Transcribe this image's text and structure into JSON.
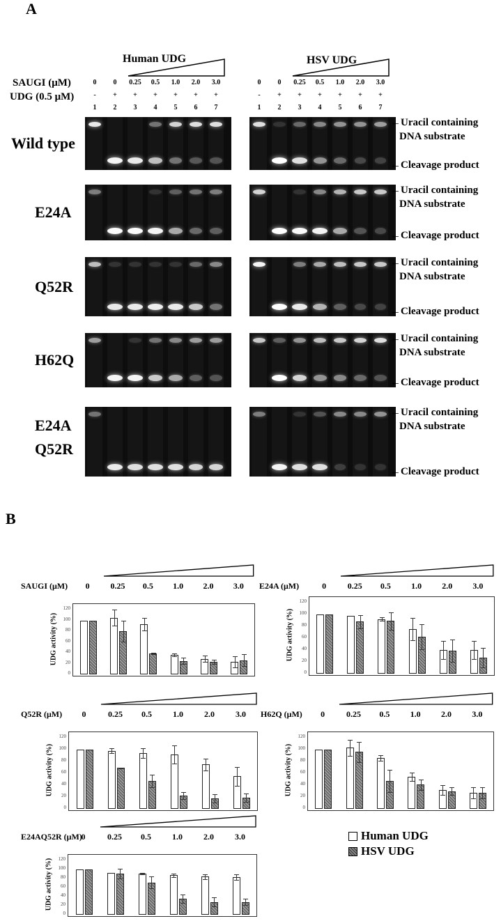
{
  "panel_a": {
    "letter": "A",
    "row_labels": {
      "saugi": "SAUGI (μM)",
      "udg": "UDG (0.5 μM)"
    },
    "sections": [
      {
        "title": "Human  UDG",
        "saugi": [
          "0",
          "0",
          "0.25",
          "0.5",
          "1.0",
          "2.0",
          "3.0"
        ],
        "udg": [
          "-",
          "+",
          "+",
          "+",
          "+",
          "+",
          "+"
        ],
        "lanes": [
          "1",
          "2",
          "3",
          "4",
          "5",
          "6",
          "7"
        ]
      },
      {
        "title": "HSV UDG",
        "saugi": [
          "0",
          "0",
          "0.25",
          "0.5",
          "1.0",
          "2.0",
          "3.0"
        ],
        "udg": [
          "-",
          "+",
          "+",
          "+",
          "+",
          "+",
          "+"
        ],
        "lanes": [
          "1",
          "2",
          "3",
          "4",
          "5",
          "6",
          "7"
        ]
      }
    ],
    "band_labels": {
      "substrate_line1": "Uracil containing",
      "substrate_line2": "DNA substrate",
      "product": "Cleavage product"
    },
    "gels": [
      {
        "mutant": "Wild type",
        "human": {
          "substrate": [
            0.9,
            0.02,
            0.03,
            0.35,
            0.8,
            0.85,
            0.85
          ],
          "product": [
            0,
            0.95,
            0.9,
            0.7,
            0.35,
            0.22,
            0.2
          ]
        },
        "hsv": {
          "substrate": [
            0.85,
            0.05,
            0.3,
            0.45,
            0.5,
            0.5,
            0.55
          ],
          "product": [
            0,
            1.0,
            0.85,
            0.5,
            0.3,
            0.15,
            0.12
          ]
        }
      },
      {
        "mutant": "E24A",
        "human": {
          "substrate": [
            0.4,
            0.02,
            0.02,
            0.05,
            0.25,
            0.35,
            0.4
          ],
          "product": [
            0,
            0.98,
            0.98,
            0.95,
            0.6,
            0.3,
            0.25
          ]
        },
        "hsv": {
          "substrate": [
            0.8,
            0.02,
            0.05,
            0.45,
            0.65,
            0.75,
            0.75
          ],
          "product": [
            0,
            1.0,
            0.98,
            0.95,
            0.6,
            0.2,
            0.15
          ]
        }
      },
      {
        "mutant": "Q52R",
        "human": {
          "substrate": [
            0.7,
            0.05,
            0.05,
            0.05,
            0.05,
            0.3,
            0.45
          ],
          "product": [
            0,
            0.9,
            0.9,
            0.92,
            0.9,
            0.75,
            0.35
          ]
        },
        "hsv": {
          "substrate": [
            0.95,
            0.02,
            0.4,
            0.6,
            0.7,
            0.75,
            0.75
          ],
          "product": [
            0,
            1.0,
            0.9,
            0.65,
            0.25,
            0.15,
            0.12
          ]
        }
      },
      {
        "mutant": "H62Q",
        "human": {
          "substrate": [
            0.55,
            0.02,
            0.05,
            0.35,
            0.45,
            0.55,
            0.55
          ],
          "product": [
            0,
            0.95,
            0.95,
            0.75,
            0.6,
            0.25,
            0.2
          ]
        },
        "hsv": {
          "substrate": [
            0.75,
            0.25,
            0.5,
            0.7,
            0.75,
            0.8,
            0.85
          ],
          "product": [
            0,
            1.0,
            0.8,
            0.5,
            0.45,
            0.3,
            0.2
          ]
        }
      },
      {
        "mutant": "E24A\nQ52R",
        "human": {
          "substrate": [
            0.35,
            0.02,
            0.02,
            0.02,
            0.02,
            0.02,
            0.02
          ],
          "product": [
            0,
            0.9,
            0.85,
            0.85,
            0.85,
            0.8,
            0.8
          ]
        },
        "hsv": {
          "substrate": [
            0.4,
            0.02,
            0.05,
            0.2,
            0.45,
            0.45,
            0.5
          ],
          "product": [
            0,
            0.95,
            0.85,
            0.85,
            0.1,
            0.05,
            0.05
          ]
        }
      }
    ]
  },
  "panel_b": {
    "letter": "B",
    "legend": [
      {
        "label": "Human  UDG",
        "key": "human"
      },
      {
        "label": "HSV UDG",
        "key": "hsv"
      }
    ],
    "conc_labels": [
      "0",
      "0.25",
      "0.5",
      "1.0",
      "2.0",
      "3.0"
    ],
    "y_ticks": [
      "120",
      "100",
      "80",
      "60",
      "40",
      "20",
      "0"
    ],
    "y_label": "UDG activity (%)"
  },
  "chart_data": [
    {
      "type": "bar",
      "title": "SAUGI (μM)",
      "categories": [
        "0",
        "0.25",
        "0.5",
        "1.0",
        "2.0",
        "3.0"
      ],
      "xlabel": "",
      "ylabel": "UDG activity (%)",
      "ylim": [
        0,
        120
      ],
      "grid": false,
      "series": [
        {
          "name": "Human UDG",
          "values": [
            100,
            105,
            93,
            36,
            29,
            23
          ],
          "errors": [
            0,
            15,
            12,
            3,
            6,
            10
          ]
        },
        {
          "name": "HSV UDG",
          "values": [
            100,
            80,
            39,
            25,
            23,
            26
          ],
          "errors": [
            0,
            19,
            1,
            6,
            4,
            11
          ]
        }
      ]
    },
    {
      "type": "bar",
      "title": "E24A (μM)",
      "categories": [
        "0",
        "0.25",
        "0.5",
        "1.0",
        "2.0",
        "3.0"
      ],
      "xlabel": "",
      "ylabel": "UDG activity (%)",
      "ylim": [
        0,
        120
      ],
      "grid": false,
      "series": [
        {
          "name": "Human UDG",
          "values": [
            100,
            98,
            92,
            75,
            40,
            40
          ],
          "errors": [
            0,
            0,
            3,
            19,
            15,
            15
          ]
        },
        {
          "name": "HSV UDG",
          "values": [
            100,
            88,
            89,
            62,
            39,
            27
          ],
          "errors": [
            0,
            11,
            15,
            21,
            19,
            16
          ]
        }
      ]
    },
    {
      "type": "bar",
      "title": "Q52R (μM)",
      "categories": [
        "0",
        "0.25",
        "0.5",
        "1.0",
        "2.0",
        "3.0"
      ],
      "xlabel": "",
      "ylabel": "UDG activity (%)",
      "ylim": [
        0,
        120
      ],
      "grid": false,
      "series": [
        {
          "name": "Human UDG",
          "values": [
            100,
            98,
            94,
            92,
            75,
            55
          ],
          "errors": [
            0,
            4,
            8,
            15,
            10,
            16
          ]
        },
        {
          "name": "HSV UDG",
          "values": [
            100,
            69,
            47,
            22,
            18,
            19
          ],
          "errors": [
            0,
            1,
            11,
            6,
            7,
            7
          ]
        }
      ]
    },
    {
      "type": "bar",
      "title": "H62Q (μM)",
      "categories": [
        "0",
        "0.25",
        "0.5",
        "1.0",
        "2.0",
        "3.0"
      ],
      "xlabel": "",
      "ylabel": "UDG activity (%)",
      "ylim": [
        0,
        120
      ],
      "grid": false,
      "series": [
        {
          "name": "Human UDG",
          "values": [
            100,
            103,
            86,
            54,
            32,
            27
          ],
          "errors": [
            0,
            14,
            5,
            7,
            8,
            9
          ]
        },
        {
          "name": "HSV UDG",
          "values": [
            100,
            96,
            47,
            41,
            30,
            27
          ],
          "errors": [
            0,
            17,
            19,
            9,
            7,
            9
          ]
        }
      ]
    },
    {
      "type": "bar",
      "title": "E24AQ52R (μM)",
      "categories": [
        "0",
        "0.25",
        "0.5",
        "1.0",
        "2.0",
        "3.0"
      ],
      "xlabel": "",
      "ylabel": "UDG activity (%)",
      "ylim": [
        0,
        120
      ],
      "grid": false,
      "series": [
        {
          "name": "Human UDG",
          "values": [
            100,
            93,
            91,
            87,
            84,
            83
          ],
          "errors": [
            0,
            0,
            1,
            4,
            5,
            6
          ]
        },
        {
          "name": "HSV UDG",
          "values": [
            100,
            91,
            71,
            35,
            28,
            28
          ],
          "errors": [
            0,
            11,
            13,
            9,
            10,
            7
          ]
        }
      ]
    }
  ]
}
